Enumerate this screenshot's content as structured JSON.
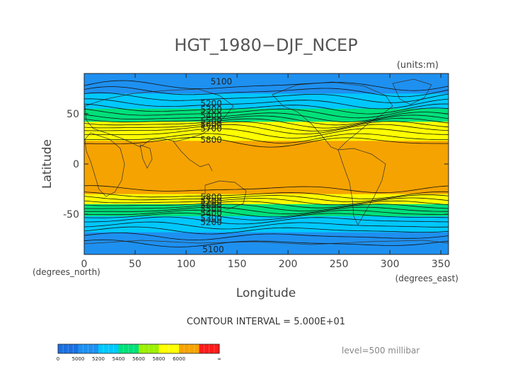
{
  "chart_data": {
    "type": "heatmap",
    "title": "HGT_1980−DJF_NCEP",
    "units": "(units:m)",
    "xlabel": "Longitude",
    "ylabel": "Latitude",
    "x_units": "(degrees_east)",
    "y_units": "(degrees_north)",
    "xlim": [
      0,
      357.5
    ],
    "ylim": [
      -90,
      90
    ],
    "x_ticks": [
      0,
      50,
      100,
      150,
      200,
      250,
      300,
      350
    ],
    "y_ticks": [
      -50,
      0,
      50
    ],
    "contour_interval_text": "CONTOUR INTERVAL = 5.000E+01",
    "level_text": "level=500 millibar",
    "contour_labels": [
      "5100",
      "5200",
      "5300",
      "5400",
      "5500",
      "5600",
      "5700",
      "5800"
    ],
    "colorbar": {
      "ticks": [
        "0",
        "5000",
        "5200",
        "5400",
        "5600",
        "5800",
        "6000",
        "∞"
      ],
      "colors": [
        "#1a6fe0",
        "#1e90f0",
        "#00c8ff",
        "#00e07a",
        "#9cf000",
        "#ffff00",
        "#f5a300",
        "#ff1a1a"
      ]
    },
    "latitude_bands": [
      {
        "lat_top": 90,
        "lat_bottom": 80,
        "range": "5000-5200",
        "color": "#1e90f0"
      },
      {
        "lat_top": 80,
        "lat_bottom": 70,
        "range": "5000-5200",
        "color": "#1e90f0"
      },
      {
        "lat_top": 70,
        "lat_bottom": 55,
        "range": "5200-5400",
        "color": "#00c8ff"
      },
      {
        "lat_top": 55,
        "lat_bottom": 42,
        "range": "5400-5600",
        "color": "#00e07a"
      },
      {
        "lat_top": 42,
        "lat_bottom": 35,
        "range": "5600-5800",
        "color": "#ffff00"
      },
      {
        "lat_top": 35,
        "lat_bottom": 23,
        "range": "5600-5800",
        "color": "#ffff00"
      },
      {
        "lat_top": 23,
        "lat_bottom": -30,
        "range": "5800-6000",
        "color": "#f5a300"
      },
      {
        "lat_top": -30,
        "lat_bottom": -40,
        "range": "5600-5800",
        "color": "#ffff00"
      },
      {
        "lat_top": -40,
        "lat_bottom": -52,
        "range": "5400-5600",
        "color": "#00e07a"
      },
      {
        "lat_top": -52,
        "lat_bottom": -68,
        "range": "5200-5400",
        "color": "#00c8ff"
      },
      {
        "lat_top": -68,
        "lat_bottom": -90,
        "range": "5000-5200",
        "color": "#1e90f0"
      }
    ]
  }
}
